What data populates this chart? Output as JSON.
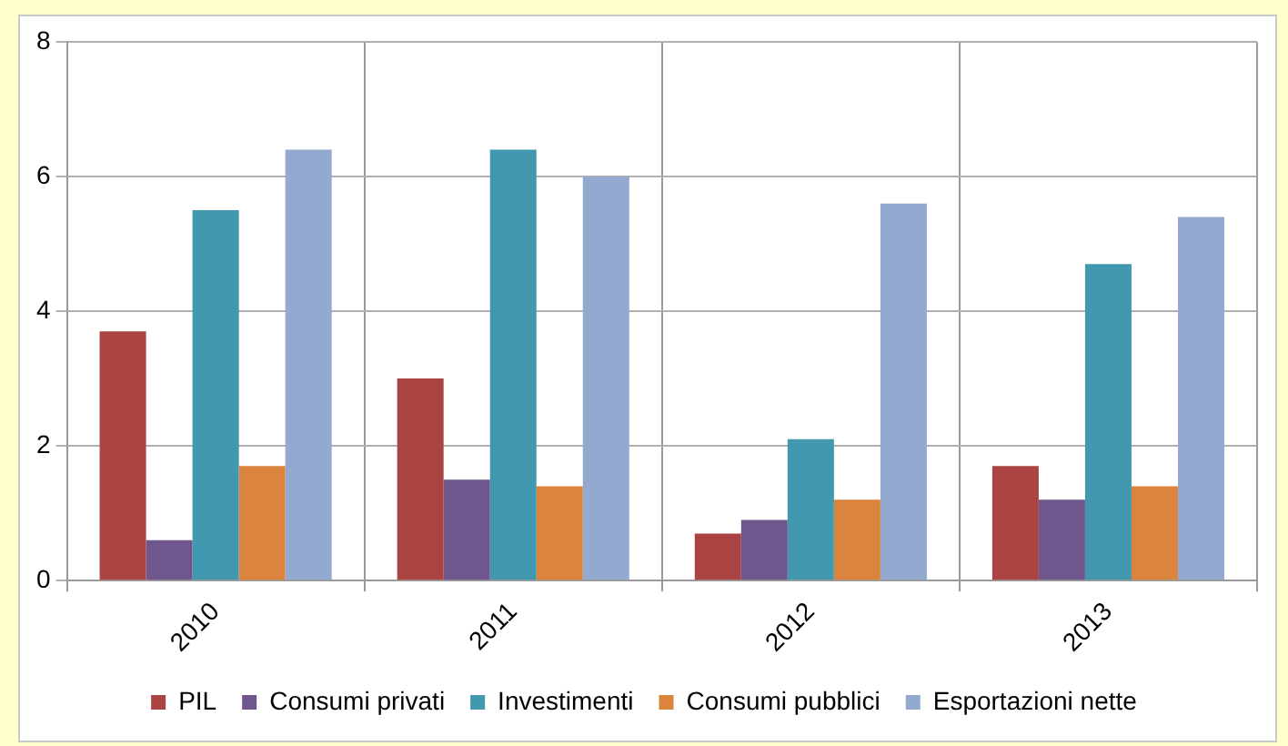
{
  "chart_data": {
    "type": "bar",
    "categories": [
      "2010",
      "2011",
      "2012",
      "2013"
    ],
    "series": [
      {
        "name": "PIL",
        "color": "#a94442",
        "values": [
          3.7,
          3.0,
          0.7,
          1.7
        ]
      },
      {
        "name": "Consumi privati",
        "color": "#6f568c",
        "values": [
          0.6,
          1.5,
          0.9,
          1.2
        ]
      },
      {
        "name": "Investimenti",
        "color": "#4298ae",
        "values": [
          5.5,
          6.4,
          2.1,
          4.7
        ]
      },
      {
        "name": "Consumi pubblici",
        "color": "#db843d",
        "values": [
          1.7,
          1.4,
          1.2,
          1.4
        ]
      },
      {
        "name": "Esportazioni nette",
        "color": "#93a9cf",
        "values": [
          6.4,
          6.0,
          5.6,
          5.4
        ]
      }
    ],
    "ylim": [
      0,
      8
    ],
    "yticks": [
      0,
      2,
      4,
      6,
      8
    ],
    "grid": true,
    "legend": "bottom"
  }
}
